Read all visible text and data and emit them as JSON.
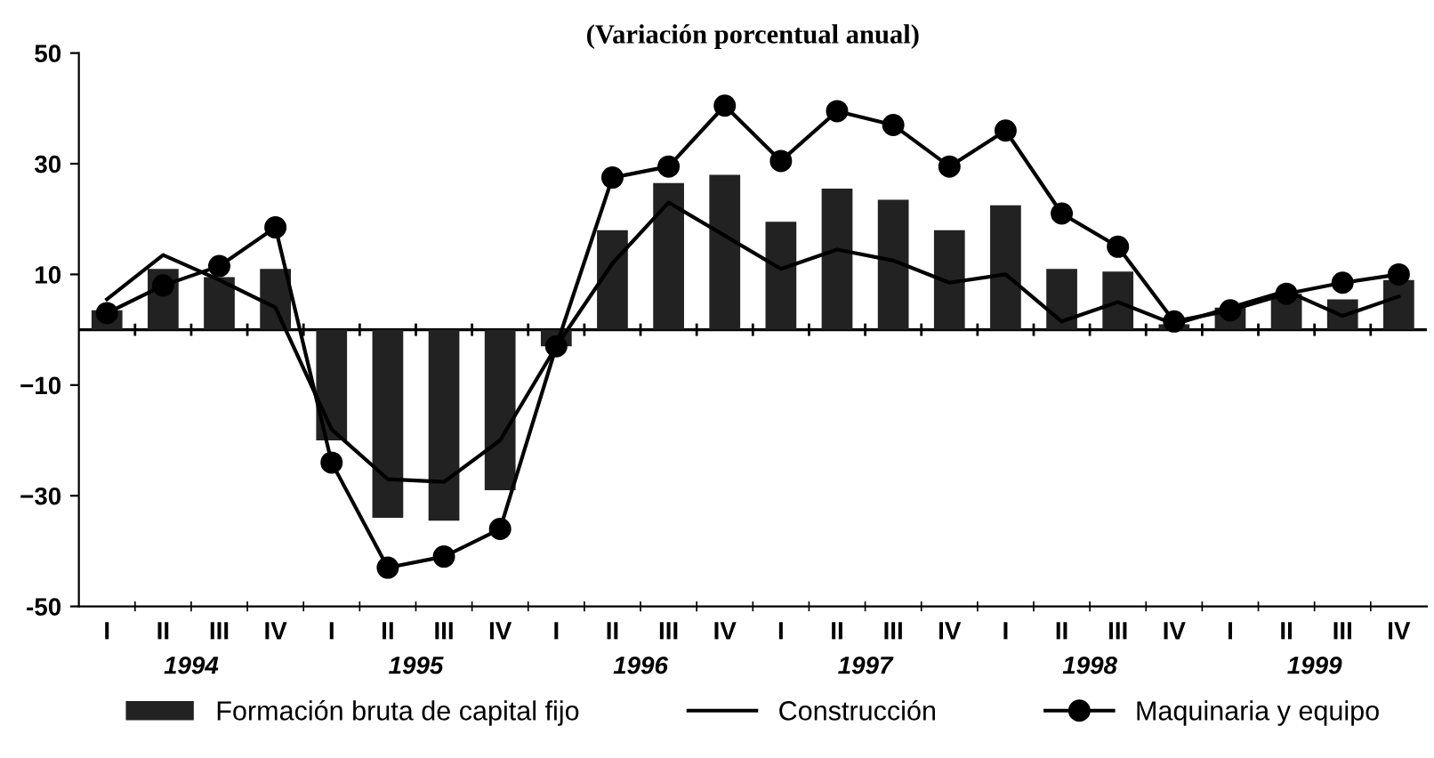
{
  "chart_data": {
    "type": "bar",
    "title": "(Variación porcentual anual)",
    "categories": [
      "I",
      "II",
      "III",
      "IV",
      "I",
      "II",
      "III",
      "IV",
      "I",
      "II",
      "III",
      "IV",
      "I",
      "II",
      "III",
      "IV",
      "I",
      "II",
      "III",
      "IV",
      "I",
      "II",
      "III",
      "IV"
    ],
    "series": [
      {
        "name": "Formación bruta de capital fijo",
        "color": "#222222",
        "values": [
          3.5,
          11,
          9.5,
          11,
          -20,
          -34,
          -34.5,
          -29,
          -3,
          18,
          26.5,
          28,
          19.5,
          25.5,
          23.5,
          18,
          22.5,
          11,
          10.5,
          1,
          4,
          6.5,
          5.5,
          9
        ]
      },
      {
        "name": "Construcción",
        "type": "line",
        "color": "#000000",
        "marker": "none",
        "values": [
          5.5,
          13.5,
          9,
          4,
          -18,
          -27,
          -27.5,
          -20,
          -3,
          12,
          23,
          17,
          11,
          14.5,
          12.5,
          8.5,
          10,
          1.5,
          5,
          1,
          4,
          7,
          2.5,
          6
        ]
      },
      {
        "name": "Maquinaria y equipo",
        "type": "line",
        "color": "#000000",
        "marker": "circle",
        "values": [
          3,
          8,
          11.5,
          18.5,
          -24,
          -43,
          -41,
          -36,
          -3,
          27.5,
          29.5,
          40.5,
          30.5,
          39.5,
          37,
          29.5,
          36,
          21,
          15,
          1.5,
          3.5,
          6.5,
          8.5,
          10
        ]
      }
    ],
    "annotations": [
      "1994",
      "1995",
      "1996",
      "1997",
      "1998",
      "1999"
    ],
    "ylim": [
      -50,
      50
    ],
    "yticks": [
      -50,
      {
        "value": -30,
        "label": "−30"
      },
      {
        "value": -10,
        "label": "−10"
      },
      10,
      30,
      50
    ],
    "ref_lines": [
      {
        "axis": "y",
        "value": 0,
        "color": "#000000"
      }
    ],
    "grid": false,
    "legend": "bottom"
  }
}
